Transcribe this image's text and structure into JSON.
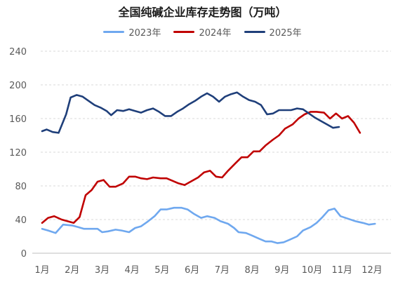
{
  "chart_data": {
    "type": "line",
    "title": "全国纯碱企业库存走势图（万吨）",
    "xlabel": "",
    "ylabel": "",
    "ylim": [
      0,
      240
    ],
    "yticks": [
      "0",
      "40",
      "80",
      "120",
      "160",
      "200",
      "240"
    ],
    "xticks": [
      "1月",
      "2月",
      "3月",
      "4月",
      "5月",
      "6月",
      "7月",
      "8月",
      "9月",
      "10月",
      "11月",
      "12月"
    ],
    "grid": "horizontal dashed",
    "legend": "top-center",
    "colors": {
      "2023年": "#6fa8ef",
      "2024年": "#c00000",
      "2025年": "#1f3f7a"
    },
    "series": [
      {
        "name": "2023年",
        "color": "#6fa8ef",
        "points": [
          [
            0,
            29
          ],
          [
            0.2,
            27
          ],
          [
            0.45,
            24
          ],
          [
            0.7,
            34
          ],
          [
            1.0,
            33
          ],
          [
            1.2,
            31
          ],
          [
            1.4,
            29
          ],
          [
            1.65,
            29
          ],
          [
            1.85,
            29
          ],
          [
            2.0,
            25
          ],
          [
            2.2,
            26
          ],
          [
            2.45,
            28
          ],
          [
            2.65,
            27
          ],
          [
            2.9,
            25
          ],
          [
            3.1,
            30
          ],
          [
            3.3,
            32
          ],
          [
            3.5,
            37
          ],
          [
            3.75,
            44
          ],
          [
            3.95,
            52
          ],
          [
            4.15,
            52
          ],
          [
            4.4,
            54
          ],
          [
            4.65,
            54
          ],
          [
            4.85,
            52
          ],
          [
            5.05,
            47
          ],
          [
            5.3,
            42
          ],
          [
            5.5,
            44
          ],
          [
            5.75,
            42
          ],
          [
            5.95,
            38
          ],
          [
            6.2,
            35
          ],
          [
            6.4,
            30
          ],
          [
            6.55,
            25
          ],
          [
            6.8,
            24
          ],
          [
            7.0,
            21
          ],
          [
            7.25,
            17
          ],
          [
            7.45,
            14
          ],
          [
            7.65,
            14
          ],
          [
            7.85,
            12
          ],
          [
            8.05,
            13
          ],
          [
            8.25,
            16
          ],
          [
            8.5,
            20
          ],
          [
            8.7,
            27
          ],
          [
            8.95,
            31
          ],
          [
            9.15,
            36
          ],
          [
            9.35,
            43
          ],
          [
            9.55,
            51
          ],
          [
            9.75,
            53
          ],
          [
            9.95,
            44
          ],
          [
            10.2,
            41
          ],
          [
            10.45,
            38
          ],
          [
            10.7,
            36
          ],
          [
            10.9,
            34
          ],
          [
            11.1,
            35
          ]
        ]
      },
      {
        "name": "2024年",
        "color": "#c00000",
        "points": [
          [
            0,
            36
          ],
          [
            0.2,
            42
          ],
          [
            0.4,
            44
          ],
          [
            0.65,
            40
          ],
          [
            0.85,
            38
          ],
          [
            1.05,
            36
          ],
          [
            1.25,
            43
          ],
          [
            1.45,
            69
          ],
          [
            1.65,
            75
          ],
          [
            1.85,
            85
          ],
          [
            2.05,
            87
          ],
          [
            2.25,
            79
          ],
          [
            2.45,
            79
          ],
          [
            2.7,
            83
          ],
          [
            2.9,
            91
          ],
          [
            3.1,
            91
          ],
          [
            3.3,
            89
          ],
          [
            3.5,
            88
          ],
          [
            3.7,
            90
          ],
          [
            3.95,
            89
          ],
          [
            4.15,
            89
          ],
          [
            4.35,
            86
          ],
          [
            4.55,
            83
          ],
          [
            4.75,
            81
          ],
          [
            4.95,
            85
          ],
          [
            5.2,
            90
          ],
          [
            5.4,
            96
          ],
          [
            5.6,
            98
          ],
          [
            5.8,
            91
          ],
          [
            6.0,
            90
          ],
          [
            6.2,
            98
          ],
          [
            6.45,
            107
          ],
          [
            6.65,
            114
          ],
          [
            6.85,
            114
          ],
          [
            7.05,
            121
          ],
          [
            7.25,
            121
          ],
          [
            7.45,
            128
          ],
          [
            7.7,
            135
          ],
          [
            7.9,
            140
          ],
          [
            8.1,
            148
          ],
          [
            8.35,
            153
          ],
          [
            8.55,
            160
          ],
          [
            8.75,
            165
          ],
          [
            8.95,
            168
          ],
          [
            9.15,
            168
          ],
          [
            9.4,
            167
          ],
          [
            9.6,
            160
          ],
          [
            9.8,
            166
          ],
          [
            10.0,
            160
          ],
          [
            10.2,
            163
          ],
          [
            10.4,
            155
          ],
          [
            10.6,
            143
          ]
        ]
      },
      {
        "name": "2025年",
        "color": "#1f3f7a",
        "points": [
          [
            0,
            145
          ],
          [
            0.15,
            147
          ],
          [
            0.35,
            144
          ],
          [
            0.55,
            143
          ],
          [
            0.8,
            165
          ],
          [
            0.95,
            185
          ],
          [
            1.15,
            188
          ],
          [
            1.35,
            186
          ],
          [
            1.55,
            181
          ],
          [
            1.75,
            176
          ],
          [
            1.95,
            173
          ],
          [
            2.15,
            169
          ],
          [
            2.3,
            164
          ],
          [
            2.5,
            170
          ],
          [
            2.7,
            169
          ],
          [
            2.9,
            171
          ],
          [
            3.1,
            169
          ],
          [
            3.3,
            167
          ],
          [
            3.5,
            170
          ],
          [
            3.7,
            172
          ],
          [
            3.9,
            168
          ],
          [
            4.1,
            163
          ],
          [
            4.3,
            163
          ],
          [
            4.5,
            168
          ],
          [
            4.7,
            172
          ],
          [
            4.9,
            177
          ],
          [
            5.1,
            181
          ],
          [
            5.3,
            186
          ],
          [
            5.5,
            190
          ],
          [
            5.7,
            186
          ],
          [
            5.9,
            180
          ],
          [
            6.1,
            186
          ],
          [
            6.3,
            189
          ],
          [
            6.5,
            191
          ],
          [
            6.7,
            186
          ],
          [
            6.9,
            182
          ],
          [
            7.1,
            180
          ],
          [
            7.3,
            176
          ],
          [
            7.5,
            165
          ],
          [
            7.7,
            166
          ],
          [
            7.9,
            170
          ],
          [
            8.1,
            170
          ],
          [
            8.3,
            170
          ],
          [
            8.5,
            172
          ],
          [
            8.7,
            171
          ],
          [
            8.9,
            166
          ],
          [
            9.1,
            161
          ],
          [
            9.3,
            157
          ],
          [
            9.5,
            153
          ],
          [
            9.7,
            149
          ],
          [
            9.9,
            150
          ]
        ]
      }
    ]
  }
}
